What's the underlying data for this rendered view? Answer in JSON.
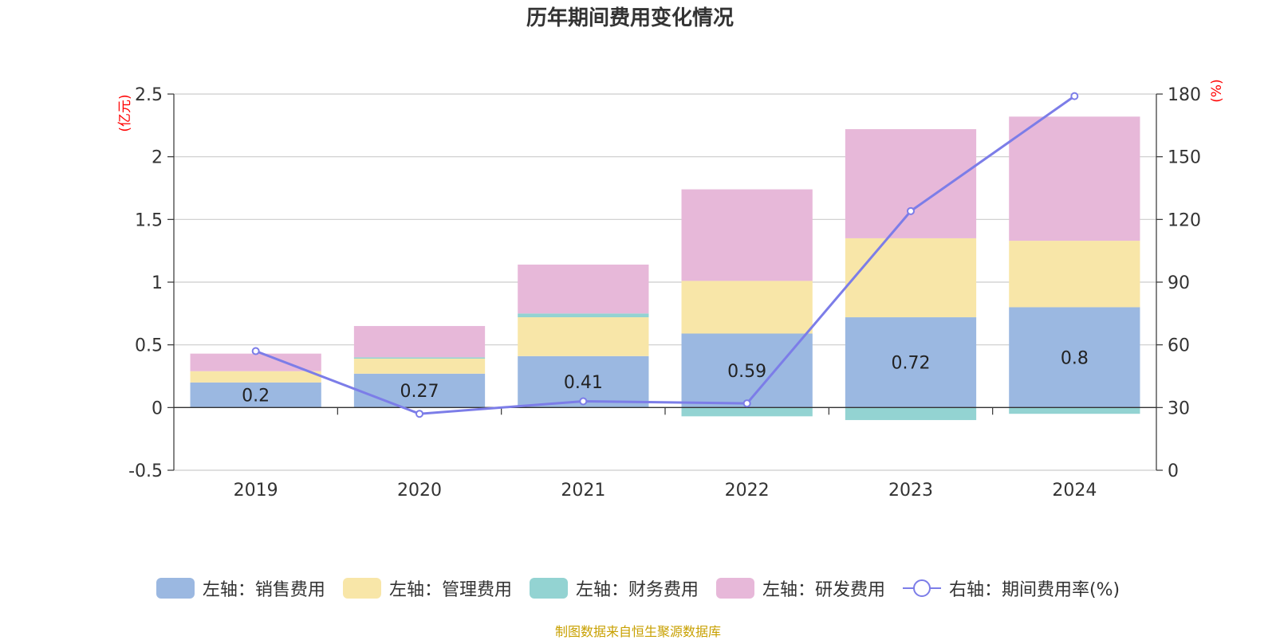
{
  "title": "历年期间费用变化情况",
  "source": "制图数据来自恒生聚源数据库",
  "colors": {
    "sales": "#9bb8e1",
    "admin": "#f8e6a8",
    "finance": "#93d3d2",
    "rd": "#e7b8d9",
    "rate_line": "#7c7de8",
    "axis_unit": "#ff0000",
    "grid": "#cccccc"
  },
  "chart_data": {
    "type": "bar",
    "stacked": true,
    "categories": [
      "2019",
      "2020",
      "2021",
      "2022",
      "2023",
      "2024"
    ],
    "left_axis": {
      "label": "(亿元)",
      "ylim": [
        -0.5,
        2.5
      ],
      "ticks": [
        "2.5",
        "2",
        "1.5",
        "1",
        "0.5",
        "0",
        "-0.5"
      ]
    },
    "right_axis": {
      "label": "(%)",
      "ylim": [
        0,
        180
      ],
      "ticks": [
        "180",
        "150",
        "120",
        "90",
        "60",
        "30",
        "0"
      ]
    },
    "series": [
      {
        "name": "左轴：销售费用",
        "key": "sales",
        "type": "bar",
        "axis": "left",
        "values": [
          0.2,
          0.27,
          0.41,
          0.59,
          0.72,
          0.8
        ],
        "labels": [
          "0.2",
          "0.27",
          "0.41",
          "0.59",
          "0.72",
          "0.8"
        ]
      },
      {
        "name": "左轴：管理费用",
        "key": "admin",
        "type": "bar",
        "axis": "left",
        "values": [
          0.09,
          0.12,
          0.31,
          0.42,
          0.63,
          0.53
        ]
      },
      {
        "name": "左轴：财务费用",
        "key": "finance",
        "type": "bar",
        "axis": "left",
        "values": [
          0.0,
          0.01,
          0.03,
          -0.07,
          -0.1,
          -0.05
        ]
      },
      {
        "name": "左轴：研发费用",
        "key": "rd",
        "type": "bar",
        "axis": "left",
        "values": [
          0.14,
          0.25,
          0.39,
          0.73,
          0.87,
          0.99
        ]
      },
      {
        "name": "右轴：期间费用率(%)",
        "key": "rate",
        "type": "line",
        "axis": "right",
        "values": [
          57,
          27,
          33,
          32,
          124,
          179
        ]
      }
    ],
    "grid": true,
    "legend_position": "bottom"
  }
}
